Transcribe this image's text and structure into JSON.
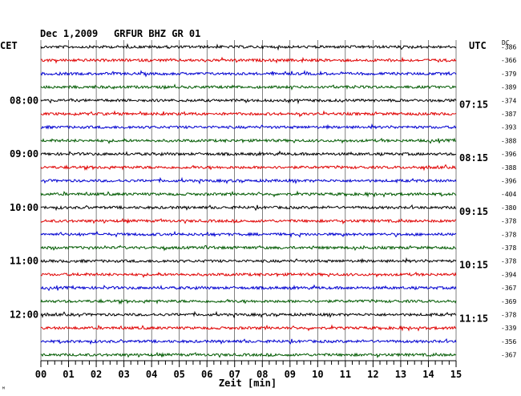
{
  "header": {
    "date": "Dec 1,2009",
    "station": "GRFUR BHZ GR 01",
    "left_zone": "CET",
    "right_zone": "UTC",
    "dc_label": "DC"
  },
  "chart_data": {
    "type": "line",
    "title": "Dec 1,2009   GRFUR BHZ GR 01",
    "xlabel": "Zeit [min]",
    "xlim": [
      0,
      15
    ],
    "x_ticks": [
      "00",
      "01",
      "02",
      "03",
      "04",
      "05",
      "06",
      "07",
      "08",
      "09",
      "10",
      "11",
      "12",
      "13",
      "14",
      "15"
    ],
    "series_colors": [
      "#000000",
      "#e00000",
      "#0000d0",
      "#005a00"
    ],
    "rows": 24,
    "left_time_labels": [
      {
        "row": 4,
        "label": "08:00"
      },
      {
        "row": 8,
        "label": "09:00"
      },
      {
        "row": 12,
        "label": "10:00"
      },
      {
        "row": 16,
        "label": "11:00"
      },
      {
        "row": 20,
        "label": "12:00"
      }
    ],
    "right_time_labels": [
      {
        "row": 4,
        "label": "07:15"
      },
      {
        "row": 8,
        "label": "08:15"
      },
      {
        "row": 12,
        "label": "09:15"
      },
      {
        "row": 16,
        "label": "10:15"
      },
      {
        "row": 20,
        "label": "11:15"
      }
    ],
    "dc_offsets": [
      "-386",
      "-366",
      "-379",
      "-389",
      "-374",
      "-387",
      "-393",
      "-388",
      "-396",
      "-388",
      "-396",
      "-404",
      "-380",
      "-378",
      "-378",
      "-378",
      "-378",
      "-394",
      "-367",
      "-369",
      "-378",
      "-339",
      "-356",
      "-367"
    ]
  },
  "footer": {
    "corner_mark": "ᴹ"
  }
}
